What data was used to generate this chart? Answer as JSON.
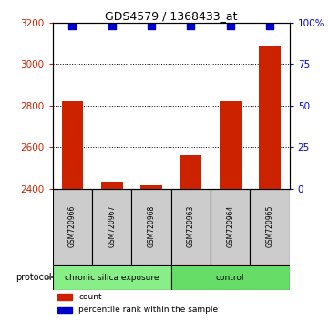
{
  "title": "GDS4579 / 1368433_at",
  "samples": [
    "GSM720966",
    "GSM720967",
    "GSM720968",
    "GSM720963",
    "GSM720964",
    "GSM720965"
  ],
  "bar_values": [
    2820,
    2430,
    2415,
    2560,
    2820,
    3090
  ],
  "bar_color": "#cc2200",
  "dot_color": "#0000cc",
  "ylim_left": [
    2400,
    3200
  ],
  "ylim_right": [
    0,
    100
  ],
  "yticks_left": [
    2400,
    2600,
    2800,
    3000,
    3200
  ],
  "yticks_right": [
    0,
    25,
    50,
    75,
    100
  ],
  "yright_labels": [
    "0",
    "25",
    "50",
    "75",
    "100%"
  ],
  "groups": [
    {
      "label": "chronic silica exposure",
      "indices": [
        0,
        1,
        2
      ],
      "color": "#88ee88"
    },
    {
      "label": "control",
      "indices": [
        3,
        4,
        5
      ],
      "color": "#66dd66"
    }
  ],
  "protocol_label": "protocol",
  "legend_items": [
    {
      "color": "#cc2200",
      "label": "count"
    },
    {
      "color": "#0000cc",
      "label": "percentile rank within the sample"
    }
  ],
  "bar_width": 0.55,
  "dot_size": 40,
  "bar_bottom": 2400,
  "figsize": [
    3.61,
    3.54
  ],
  "dpi": 100
}
